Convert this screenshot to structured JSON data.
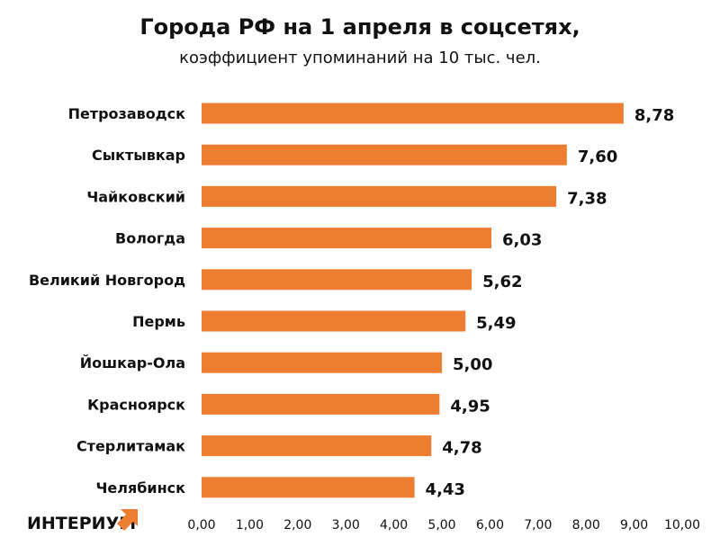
{
  "chart_data": {
    "type": "bar",
    "orientation": "horizontal",
    "title": "Города РФ на 1 апреля в соцсетях,",
    "subtitle": "коэффициент упоминаний на 10 тыс. чел.",
    "categories": [
      "Петрозаводск",
      "Сыктывкар",
      "Чайковский",
      "Вологда",
      "Великий Новгород",
      "Пермь",
      "Йошкар-Ола",
      "Красноярск",
      "Стерлитамак",
      "Челябинск"
    ],
    "values": [
      8.78,
      7.6,
      7.38,
      6.03,
      5.62,
      5.49,
      5.0,
      4.95,
      4.78,
      4.43
    ],
    "value_labels": [
      "8,78",
      "7,60",
      "7,38",
      "6,03",
      "5,62",
      "5,49",
      "5,00",
      "4,95",
      "4,78",
      "4,43"
    ],
    "xlim": [
      0,
      10
    ],
    "x_ticks": [
      "0,00",
      "1,00",
      "2,00",
      "3,00",
      "4,00",
      "5,00",
      "6,00",
      "7,00",
      "8,00",
      "9,00",
      "10,00"
    ],
    "grid": false,
    "bar_color": "#ED7D31"
  },
  "brand": {
    "logo_text": "ИНТЕРИУМ",
    "logo_color": "#ED7D31"
  }
}
